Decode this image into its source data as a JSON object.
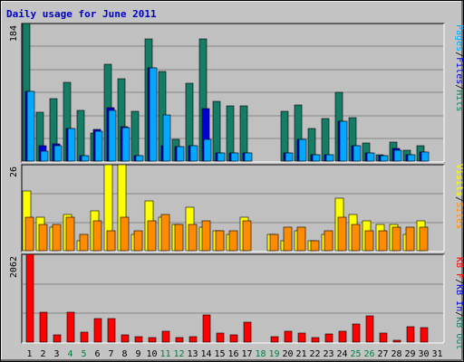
{
  "title": "Daily usage for June 2011",
  "colors": {
    "background": "#c4c4c4",
    "panel": "#c0c0c0",
    "hits": "#157c66",
    "files": "#00a8ff",
    "pages": "#0000d4",
    "visits": "#ffff00",
    "sites": "#ff8c00",
    "kbytes": "#ff0000",
    "weekend": "#008040",
    "weekday": "#000000"
  },
  "chart_data": [
    {
      "type": "bar",
      "ymax_label": "184",
      "ylim": [
        0,
        184
      ],
      "categories": [
        "1",
        "2",
        "3",
        "4",
        "5",
        "6",
        "7",
        "8",
        "9",
        "10",
        "11",
        "12",
        "13",
        "14",
        "15",
        "16",
        "17",
        "18",
        "19",
        "20",
        "21",
        "22",
        "23",
        "24",
        "25",
        "26",
        "27",
        "28",
        "29",
        "30",
        "31"
      ],
      "weekend_days": [
        "4",
        "5",
        "11",
        "12",
        "18",
        "19",
        "25",
        "26"
      ],
      "right_labels": [
        {
          "text": "Pages",
          "color": "#00a8ff"
        },
        {
          "text": "/",
          "color": "#000000"
        },
        {
          "text": "Files",
          "color": "#0000d4"
        },
        {
          "text": "/",
          "color": "#000000"
        },
        {
          "text": "Hits",
          "color": "#157c66"
        }
      ],
      "series": [
        {
          "name": "Hits",
          "color": "#157c66",
          "values": [
            184,
            65,
            83,
            105,
            68,
            38,
            130,
            110,
            66,
            163,
            120,
            29,
            104,
            164,
            80,
            74,
            74,
            0,
            0,
            67,
            75,
            43,
            57,
            92,
            58,
            24,
            8,
            26,
            15,
            21,
            0
          ]
        },
        {
          "name": "Files",
          "color": "#0000d4",
          "values": [
            93,
            20,
            23,
            43,
            7,
            42,
            71,
            46,
            7,
            125,
            21,
            19,
            20,
            70,
            11,
            11,
            11,
            0,
            0,
            11,
            29,
            8,
            8,
            53,
            21,
            11,
            7,
            17,
            9,
            12,
            0
          ]
        },
        {
          "name": "Pages",
          "color": "#00a8ff",
          "values": [
            93,
            13,
            21,
            43,
            7,
            40,
            68,
            45,
            7,
            125,
            62,
            19,
            20,
            29,
            11,
            11,
            11,
            0,
            0,
            11,
            29,
            8,
            8,
            53,
            21,
            11,
            7,
            14,
            9,
            12,
            0
          ]
        }
      ]
    },
    {
      "type": "bar",
      "ymax_label": "26",
      "ylim": [
        0,
        26
      ],
      "categories": [
        "1",
        "2",
        "3",
        "4",
        "5",
        "6",
        "7",
        "8",
        "9",
        "10",
        "11",
        "12",
        "13",
        "14",
        "15",
        "16",
        "17",
        "18",
        "19",
        "20",
        "21",
        "22",
        "23",
        "24",
        "25",
        "26",
        "27",
        "28",
        "29",
        "30",
        "31"
      ],
      "right_labels": [
        {
          "text": "Visits",
          "color": "#ffff00"
        },
        {
          "text": "/",
          "color": "#000000"
        },
        {
          "text": "Sites",
          "color": "#ff8c00"
        }
      ],
      "series": [
        {
          "name": "Visits",
          "color": "#ffff00",
          "values": [
            18,
            10,
            7,
            11,
            3,
            12,
            26,
            26,
            5,
            15,
            10,
            8,
            13,
            7,
            6,
            5,
            10,
            0,
            5,
            3,
            6,
            3,
            5,
            16,
            11,
            9,
            8,
            8,
            5,
            9,
            0
          ]
        },
        {
          "name": "Sites",
          "color": "#ff8c00",
          "values": [
            10,
            8,
            8,
            10,
            5,
            9,
            6,
            10,
            6,
            9,
            11,
            8,
            8,
            9,
            6,
            6,
            9,
            0,
            5,
            7,
            7,
            3,
            6,
            10,
            8,
            6,
            6,
            7,
            7,
            7,
            0
          ]
        }
      ]
    },
    {
      "type": "bar",
      "ymax_label": "2062",
      "ylim": [
        0,
        2062
      ],
      "categories": [
        "1",
        "2",
        "3",
        "4",
        "5",
        "6",
        "7",
        "8",
        "9",
        "10",
        "11",
        "12",
        "13",
        "14",
        "15",
        "16",
        "17",
        "18",
        "19",
        "20",
        "21",
        "22",
        "23",
        "24",
        "25",
        "26",
        "27",
        "28",
        "29",
        "30",
        "31"
      ],
      "right_labels": [
        {
          "text": "KB F",
          "color": "#ff0000"
        },
        {
          "text": "/",
          "color": "#000000"
        },
        {
          "text": "KB In",
          "color": "#0000d4"
        },
        {
          "text": "/",
          "color": "#000000"
        },
        {
          "text": "KB Out",
          "color": "#157c66"
        }
      ],
      "series": [
        {
          "name": "KBytes",
          "color": "#ff0000",
          "values": [
            2062,
            700,
            170,
            700,
            230,
            550,
            560,
            170,
            120,
            110,
            260,
            110,
            130,
            640,
            210,
            170,
            460,
            0,
            120,
            260,
            210,
            110,
            200,
            260,
            420,
            620,
            210,
            40,
            370,
            340,
            0
          ]
        }
      ]
    }
  ]
}
